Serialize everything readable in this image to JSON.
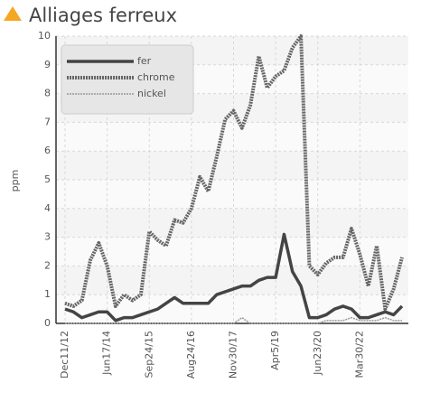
{
  "chart_data": {
    "type": "line",
    "title": "Alliages ferreux",
    "y_label": "ppm",
    "categories": [
      "Dec11/12",
      null,
      null,
      null,
      null,
      "Jun17/14",
      null,
      null,
      null,
      null,
      "Sep24/15",
      null,
      null,
      null,
      null,
      "Aug24/16",
      null,
      null,
      null,
      null,
      "Nov30/17",
      null,
      null,
      null,
      null,
      "Apr5/19",
      null,
      null,
      null,
      null,
      "Jun23/20",
      null,
      null,
      null,
      null,
      "Mar30/22",
      null,
      null,
      null,
      null,
      null
    ],
    "series": [
      {
        "name": "fer",
        "color": "#444444",
        "values": [
          0.5,
          0.4,
          0.2,
          0.3,
          0.4,
          0.4,
          0.1,
          0.2,
          0.2,
          0.3,
          0.4,
          0.5,
          0.7,
          0.9,
          0.7,
          0.7,
          0.7,
          0.7,
          1.0,
          1.1,
          1.2,
          1.3,
          1.3,
          1.5,
          1.6,
          1.6,
          3.1,
          1.8,
          1.3,
          0.2,
          0.2,
          0.3,
          0.5,
          0.6,
          0.5,
          0.2,
          0.2,
          0.3,
          0.4,
          0.3,
          0.6
        ]
      },
      {
        "name": "chrome",
        "color": "#666666",
        "values": [
          0.7,
          0.6,
          0.8,
          2.2,
          2.8,
          2.0,
          0.6,
          1.0,
          0.8,
          1.0,
          3.2,
          2.9,
          2.7,
          3.6,
          3.5,
          4.0,
          5.1,
          4.6,
          5.8,
          7.1,
          7.4,
          6.8,
          7.6,
          9.3,
          8.2,
          8.6,
          8.8,
          9.6,
          10.0,
          2.0,
          1.7,
          2.1,
          2.3,
          2.3,
          3.3,
          2.4,
          1.3,
          2.7,
          0.5,
          1.2,
          2.3
        ]
      },
      {
        "name": "nickel",
        "color": "#999999",
        "values": [
          0,
          0,
          0,
          0,
          0,
          0,
          0,
          0,
          0,
          0,
          0,
          0,
          0,
          0,
          0,
          0,
          0,
          0,
          0,
          0,
          0,
          0.2,
          0,
          0,
          0,
          0,
          0,
          0,
          0,
          0,
          0,
          0.1,
          0.1,
          0.1,
          0.2,
          0.1,
          0.1,
          0.1,
          0.2,
          0.1,
          0.1
        ]
      }
    ],
    "ylim": [
      0,
      10
    ],
    "yticks": [
      0,
      1,
      2,
      3,
      4,
      5,
      6,
      7,
      8,
      9,
      10
    ],
    "grid": true,
    "legend": "top-left"
  }
}
